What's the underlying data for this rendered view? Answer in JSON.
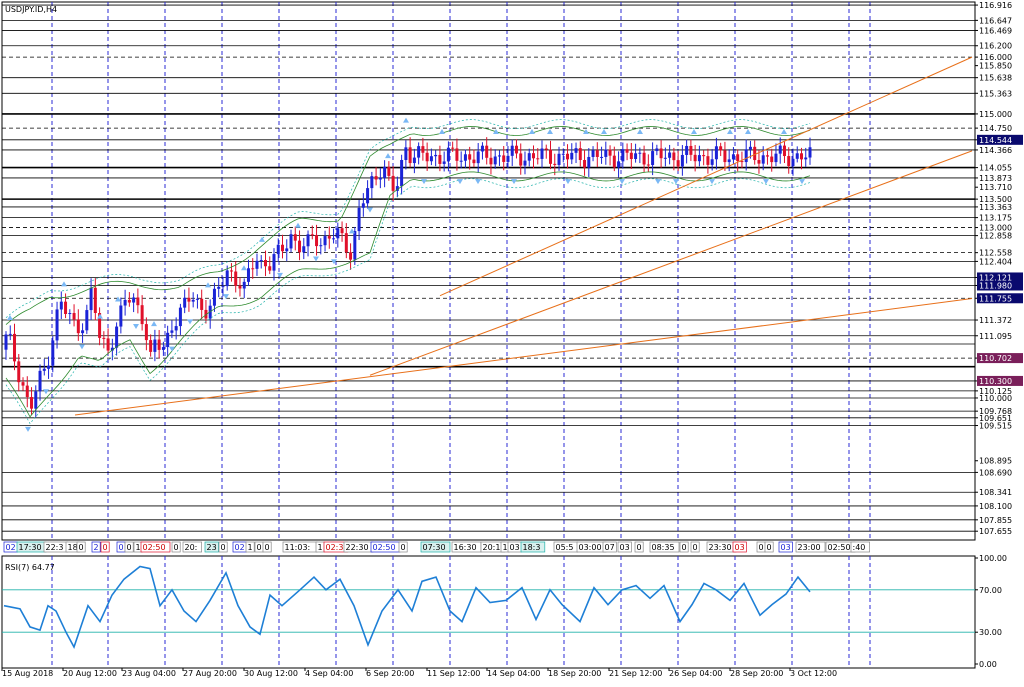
{
  "chart_data": {
    "type": "candlestick",
    "title": "USDJPY.ID,H4",
    "price_axis": {
      "ylim": [
        107.5,
        116.97
      ],
      "labels": [
        {
          "v": 116.916,
          "t": "116.916"
        },
        {
          "v": 116.647,
          "t": "116.647"
        },
        {
          "v": 116.469,
          "t": "116.469"
        },
        {
          "v": 116.2,
          "t": "116.200"
        },
        {
          "v": 116.0,
          "t": "116.000"
        },
        {
          "v": 115.85,
          "t": "115.850"
        },
        {
          "v": 115.638,
          "t": "115.638"
        },
        {
          "v": 115.363,
          "t": "115.363"
        },
        {
          "v": 115.0,
          "t": "115.000"
        },
        {
          "v": 114.75,
          "t": "114.750"
        },
        {
          "v": 114.544,
          "t": "114.544"
        },
        {
          "v": 114.366,
          "t": "114.366"
        },
        {
          "v": 114.055,
          "t": "114.055"
        },
        {
          "v": 113.873,
          "t": "113.873"
        },
        {
          "v": 113.71,
          "t": "113.710"
        },
        {
          "v": 113.5,
          "t": "113.500"
        },
        {
          "v": 113.363,
          "t": "113.363"
        },
        {
          "v": 113.175,
          "t": "113.175"
        },
        {
          "v": 113.0,
          "t": "113.000"
        },
        {
          "v": 112.858,
          "t": "112.858"
        },
        {
          "v": 112.558,
          "t": "112.558"
        },
        {
          "v": 112.404,
          "t": "112.404"
        },
        {
          "v": 112.121,
          "t": "112.121"
        },
        {
          "v": 111.98,
          "t": "111.980"
        },
        {
          "v": 111.755,
          "t": "111.755"
        },
        {
          "v": 111.372,
          "t": "111.372"
        },
        {
          "v": 111.095,
          "t": "111.095"
        },
        {
          "v": 110.702,
          "t": "110.702"
        },
        {
          "v": 110.3,
          "t": "110.300"
        },
        {
          "v": 110.125,
          "t": "110.125"
        },
        {
          "v": 110.0,
          "t": "110.000"
        },
        {
          "v": 109.768,
          "t": "109.768"
        },
        {
          "v": 109.651,
          "t": "109.651"
        },
        {
          "v": 109.515,
          "t": "109.515"
        },
        {
          "v": 108.895,
          "t": "108.895"
        },
        {
          "v": 108.69,
          "t": "108.690"
        },
        {
          "v": 108.341,
          "t": "108.341"
        },
        {
          "v": 108.1,
          "t": "108.100"
        },
        {
          "v": 107.855,
          "t": "107.855"
        },
        {
          "v": 107.655,
          "t": "107.655"
        }
      ],
      "highlight_labels": [
        {
          "v": 114.544,
          "t": "114.544",
          "color": "#0a0a6e"
        },
        {
          "v": 112.121,
          "t": "112.121",
          "color": "#0a0a6e"
        },
        {
          "v": 111.98,
          "t": "111.980",
          "color": "#0a0a6e"
        },
        {
          "v": 111.755,
          "t": "111.755",
          "color": "#0a0a6e"
        },
        {
          "v": 110.702,
          "t": "110.702",
          "color": "#7a1f5a"
        },
        {
          "v": 110.3,
          "t": "110.300",
          "color": "#7a1f5a"
        }
      ]
    },
    "levels": [
      {
        "v": 116.916,
        "style": "solid"
      },
      {
        "v": 116.647,
        "style": "solid"
      },
      {
        "v": 116.469,
        "style": "solid"
      },
      {
        "v": 116.2,
        "style": "solid"
      },
      {
        "v": 116.0,
        "style": "dashed"
      },
      {
        "v": 115.638,
        "style": "solid"
      },
      {
        "v": 115.363,
        "style": "solid"
      },
      {
        "v": 115.0,
        "style": "thick"
      },
      {
        "v": 114.75,
        "style": "dashed"
      },
      {
        "v": 114.544,
        "style": "solid"
      },
      {
        "v": 114.366,
        "style": "solid"
      },
      {
        "v": 114.055,
        "style": "thick"
      },
      {
        "v": 113.873,
        "style": "solid"
      },
      {
        "v": 113.5,
        "style": "thick"
      },
      {
        "v": 113.363,
        "style": "solid"
      },
      {
        "v": 113.175,
        "style": "solid"
      },
      {
        "v": 113.0,
        "style": "dashed"
      },
      {
        "v": 112.858,
        "style": "solid"
      },
      {
        "v": 112.558,
        "style": "dashed"
      },
      {
        "v": 112.404,
        "style": "solid"
      },
      {
        "v": 112.121,
        "style": "solid"
      },
      {
        "v": 111.98,
        "style": "solid"
      },
      {
        "v": 111.755,
        "style": "dashed"
      },
      {
        "v": 111.372,
        "style": "solid"
      },
      {
        "v": 111.095,
        "style": "solid"
      },
      {
        "v": 110.95,
        "style": "solid"
      },
      {
        "v": 110.702,
        "style": "dashed"
      },
      {
        "v": 110.55,
        "style": "thick"
      },
      {
        "v": 110.3,
        "style": "solid"
      },
      {
        "v": 110.125,
        "style": "solid"
      },
      {
        "v": 110.0,
        "style": "solid"
      },
      {
        "v": 109.768,
        "style": "solid"
      },
      {
        "v": 109.651,
        "style": "solid"
      },
      {
        "v": 109.515,
        "style": "solid"
      },
      {
        "v": 108.69,
        "style": "solid"
      },
      {
        "v": 108.341,
        "style": "solid"
      },
      {
        "v": 108.1,
        "style": "solid"
      },
      {
        "v": 107.855,
        "style": "solid"
      },
      {
        "v": 107.655,
        "style": "solid"
      }
    ],
    "candles": {
      "bars": 190,
      "anchors": [
        [
          0,
          110.85
        ],
        [
          8,
          111.1
        ],
        [
          16,
          110.6
        ],
        [
          22,
          110.3
        ],
        [
          30,
          109.75
        ],
        [
          38,
          110.25
        ],
        [
          46,
          110.55
        ],
        [
          54,
          111.2
        ],
        [
          60,
          111.7
        ],
        [
          66,
          111.5
        ],
        [
          76,
          111.25
        ],
        [
          86,
          111.4
        ],
        [
          92,
          111.9
        ],
        [
          100,
          111.0
        ],
        [
          108,
          110.9
        ],
        [
          118,
          111.3
        ],
        [
          126,
          111.75
        ],
        [
          136,
          111.7
        ],
        [
          144,
          111.4
        ],
        [
          150,
          110.6
        ],
        [
          156,
          111.0
        ],
        [
          162,
          110.85
        ],
        [
          172,
          111.3
        ],
        [
          182,
          111.5
        ],
        [
          192,
          111.85
        ],
        [
          198,
          111.7
        ],
        [
          204,
          111.5
        ],
        [
          212,
          111.6
        ],
        [
          220,
          112.0
        ],
        [
          228,
          112.3
        ],
        [
          236,
          112.05
        ],
        [
          244,
          111.85
        ],
        [
          250,
          112.3
        ],
        [
          256,
          112.55
        ],
        [
          262,
          112.35
        ],
        [
          270,
          112.3
        ],
        [
          280,
          112.6
        ],
        [
          290,
          112.9
        ],
        [
          298,
          112.6
        ],
        [
          306,
          112.65
        ],
        [
          314,
          112.95
        ],
        [
          322,
          112.7
        ],
        [
          330,
          112.8
        ],
        [
          340,
          112.9
        ],
        [
          346,
          112.75
        ],
        [
          352,
          112.5
        ],
        [
          358,
          113.2
        ],
        [
          366,
          113.6
        ],
        [
          374,
          113.9
        ],
        [
          380,
          114.05
        ],
        [
          386,
          114.0
        ],
        [
          390,
          113.65
        ],
        [
          396,
          113.65
        ],
        [
          400,
          114.0
        ],
        [
          406,
          114.45
        ],
        [
          412,
          114.25
        ]
      ],
      "span": [
        0,
        412
      ]
    },
    "bands": {
      "anchors": [
        [
          0,
          111.2,
          110.5
        ],
        [
          30,
          111.5,
          109.6
        ],
        [
          50,
          111.8,
          110.1
        ],
        [
          80,
          111.9,
          110.8
        ],
        [
          100,
          111.95,
          110.6
        ],
        [
          130,
          112.0,
          111.0
        ],
        [
          150,
          112.0,
          110.5
        ],
        [
          180,
          111.95,
          111.0
        ],
        [
          220,
          112.2,
          111.6
        ],
        [
          260,
          112.7,
          111.8
        ],
        [
          300,
          113.1,
          112.2
        ],
        [
          340,
          113.2,
          112.4
        ],
        [
          370,
          114.2,
          112.5
        ],
        [
          390,
          114.4,
          113.5
        ],
        [
          412,
          114.7,
          113.9
        ]
      ]
    },
    "trendlines": [
      {
        "from": [
          75,
          109.7
        ],
        "to": [
          972,
          111.75
        ]
      },
      {
        "from": [
          370,
          110.4
        ],
        "to": [
          972,
          114.35
        ]
      },
      {
        "from": [
          440,
          111.8
        ],
        "to": [
          972,
          116.0
        ]
      }
    ],
    "vgrid_x": [
      52,
      108,
      165,
      222,
      279,
      336,
      393,
      450,
      507,
      564,
      621,
      678,
      735,
      792,
      849,
      870
    ],
    "time_labels": [
      {
        "x": 2,
        "t": "15 Aug 2018"
      },
      {
        "x": 63,
        "t": "20 Aug 12:00"
      },
      {
        "x": 122,
        "t": "23 Aug 04:00"
      },
      {
        "x": 183,
        "t": "27 Aug 20:00"
      },
      {
        "x": 244,
        "t": "30 Aug 12:00"
      },
      {
        "x": 305,
        "t": "4 Sep 04:00"
      },
      {
        "x": 366,
        "t": "6 Sep 20:00"
      },
      {
        "x": 427,
        "t": "11 Sep 12:00"
      },
      {
        "x": 487,
        "t": "14 Sep 04:00"
      },
      {
        "x": 548,
        "t": "18 Sep 20:00"
      },
      {
        "x": 609,
        "t": "21 Sep 12:00"
      },
      {
        "x": 669,
        "t": "26 Sep 04:00"
      },
      {
        "x": 730,
        "t": "28 Sep 20:00"
      },
      {
        "x": 790,
        "t": "3 Oct 12:00"
      }
    ],
    "time_strip": [
      {
        "x": 4,
        "t": "02",
        "style": "blue"
      },
      {
        "x": 17,
        "t": "17:30",
        "style": "teal"
      },
      {
        "x": 44,
        "t": "22:3",
        "style": "plain"
      },
      {
        "x": 66,
        "t": "18",
        "style": "plain"
      },
      {
        "x": 77,
        "t": "0",
        "style": "plain"
      },
      {
        "x": 92,
        "t": "2",
        "style": "blue"
      },
      {
        "x": 101,
        "t": "0",
        "style": "red"
      },
      {
        "x": 117,
        "t": "0",
        "style": "blue"
      },
      {
        "x": 125,
        "t": "0",
        "style": "plain"
      },
      {
        "x": 134,
        "t": "1",
        "style": "plain"
      },
      {
        "x": 141,
        "t": "02:50",
        "style": "red"
      },
      {
        "x": 172,
        "t": "0",
        "style": "plain"
      },
      {
        "x": 183,
        "t": "20:",
        "style": "plain"
      },
      {
        "x": 205,
        "t": "23",
        "style": "teal"
      },
      {
        "x": 219,
        "t": "0",
        "style": "plain"
      },
      {
        "x": 233,
        "t": "02",
        "style": "blue"
      },
      {
        "x": 246,
        "t": "1",
        "style": "plain"
      },
      {
        "x": 255,
        "t": "0",
        "style": "plain"
      },
      {
        "x": 263,
        "t": "0",
        "style": "plain"
      },
      {
        "x": 283,
        "t": "11:03:",
        "style": "plain"
      },
      {
        "x": 316,
        "t": "1",
        "style": "plain"
      },
      {
        "x": 324,
        "t": "02:3",
        "style": "red"
      },
      {
        "x": 344,
        "t": "22:30",
        "style": "plain"
      },
      {
        "x": 371,
        "t": "02:50",
        "style": "blue"
      },
      {
        "x": 399,
        "t": "0",
        "style": "plain"
      },
      {
        "x": 421,
        "t": "07:30",
        "style": "teal"
      },
      {
        "x": 452,
        "t": "16:30",
        "style": "plain"
      },
      {
        "x": 481,
        "t": "20:1",
        "style": "plain"
      },
      {
        "x": 501,
        "t": "1",
        "style": "plain"
      },
      {
        "x": 508,
        "t": "03",
        "style": "plain"
      },
      {
        "x": 521,
        "t": "18:3",
        "style": "teal"
      },
      {
        "x": 554,
        "t": "05:5",
        "style": "plain"
      },
      {
        "x": 577,
        "t": "03:00",
        "style": "plain"
      },
      {
        "x": 603,
        "t": "07",
        "style": "plain"
      },
      {
        "x": 618,
        "t": "03",
        "style": "plain"
      },
      {
        "x": 635,
        "t": "0",
        "style": "plain"
      },
      {
        "x": 650,
        "t": "08:35",
        "style": "plain"
      },
      {
        "x": 680,
        "t": "0",
        "style": "plain"
      },
      {
        "x": 691,
        "t": "0",
        "style": "plain"
      },
      {
        "x": 707,
        "t": "23:30",
        "style": "plain"
      },
      {
        "x": 733,
        "t": "03",
        "style": "red"
      },
      {
        "x": 757,
        "t": "0",
        "style": "plain"
      },
      {
        "x": 765,
        "t": "0",
        "style": "plain"
      },
      {
        "x": 779,
        "t": "03",
        "style": "blue"
      },
      {
        "x": 796,
        "t": "23:00",
        "style": "plain"
      },
      {
        "x": 826,
        "t": "02:50",
        "style": "plain"
      },
      {
        "x": 851,
        "t": ":40",
        "style": "plain"
      }
    ],
    "rsi": {
      "title": "RSI(7) 64.77",
      "ylim": [
        0,
        100
      ],
      "levels": [
        70,
        30
      ],
      "axis_labels": [
        {
          "v": 100,
          "t": "100.00"
        },
        {
          "v": 70,
          "t": "70.00"
        },
        {
          "v": 30,
          "t": "30.00"
        },
        {
          "v": 0,
          "t": "0.00"
        }
      ],
      "anchors": [
        [
          4,
          55
        ],
        [
          20,
          52
        ],
        [
          30,
          35
        ],
        [
          40,
          32
        ],
        [
          48,
          55
        ],
        [
          56,
          50
        ],
        [
          66,
          30
        ],
        [
          74,
          16
        ],
        [
          88,
          55
        ],
        [
          100,
          40
        ],
        [
          112,
          65
        ],
        [
          124,
          80
        ],
        [
          140,
          92
        ],
        [
          150,
          90
        ],
        [
          160,
          55
        ],
        [
          172,
          70
        ],
        [
          184,
          50
        ],
        [
          196,
          40
        ],
        [
          210,
          60
        ],
        [
          226,
          86
        ],
        [
          238,
          55
        ],
        [
          250,
          35
        ],
        [
          260,
          28
        ],
        [
          270,
          65
        ],
        [
          282,
          55
        ],
        [
          300,
          70
        ],
        [
          314,
          82
        ],
        [
          326,
          70
        ],
        [
          340,
          80
        ],
        [
          354,
          55
        ],
        [
          368,
          18
        ],
        [
          382,
          50
        ],
        [
          398,
          70
        ],
        [
          412,
          50
        ],
        [
          422,
          78
        ],
        [
          436,
          82
        ],
        [
          450,
          50
        ],
        [
          462,
          40
        ],
        [
          476,
          72
        ],
        [
          490,
          58
        ],
        [
          506,
          60
        ],
        [
          522,
          72
        ],
        [
          536,
          42
        ],
        [
          550,
          70
        ],
        [
          562,
          56
        ],
        [
          580,
          40
        ],
        [
          594,
          72
        ],
        [
          608,
          56
        ],
        [
          622,
          70
        ],
        [
          636,
          74
        ],
        [
          650,
          62
        ],
        [
          664,
          74
        ],
        [
          680,
          40
        ],
        [
          692,
          56
        ],
        [
          704,
          76
        ],
        [
          716,
          70
        ],
        [
          730,
          60
        ],
        [
          744,
          76
        ],
        [
          760,
          46
        ],
        [
          772,
          56
        ],
        [
          786,
          66
        ],
        [
          798,
          82
        ],
        [
          810,
          68
        ]
      ]
    }
  }
}
